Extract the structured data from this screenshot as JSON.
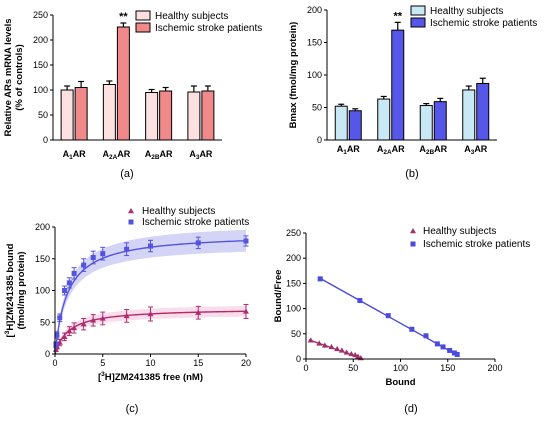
{
  "chart_data": [
    {
      "id": "a",
      "type": "bar",
      "panel_label": "(a)",
      "ylabel_line1": "Relative ARs mRNA levels",
      "ylabel_line2": "(% of controls)",
      "ylim": [
        0,
        250
      ],
      "yticks": [
        0,
        50,
        100,
        150,
        200,
        250
      ],
      "categories": [
        {
          "base": "A",
          "sub": "1",
          "tail": "AR"
        },
        {
          "base": "A",
          "sub": "2A",
          "tail": "AR"
        },
        {
          "base": "A",
          "sub": "2B",
          "tail": "AR"
        },
        {
          "base": "A",
          "sub": "3",
          "tail": "AR"
        }
      ],
      "series": [
        {
          "name": "Healthy subjects",
          "values": [
            100,
            111,
            95,
            96
          ],
          "errors": [
            8,
            7,
            6,
            12
          ],
          "color": "#fde0e0"
        },
        {
          "name": "Ischemic stroke patients",
          "values": [
            105,
            226,
            98,
            98
          ],
          "errors": [
            12,
            8,
            7,
            10
          ],
          "color": "#f08a8a"
        }
      ],
      "annotations": [
        {
          "category_index": 1,
          "series_index": 1,
          "text": "**"
        }
      ],
      "legend_position": "top-right"
    },
    {
      "id": "b",
      "type": "bar",
      "panel_label": "(b)",
      "ylabel_line1": "Bmax (fmol/mg protein)",
      "ylim": [
        0,
        200
      ],
      "yticks": [
        0,
        50,
        100,
        150,
        200
      ],
      "categories": [
        {
          "base": "A",
          "sub": "1",
          "tail": "AR"
        },
        {
          "base": "A",
          "sub": "2A",
          "tail": "AR"
        },
        {
          "base": "A",
          "sub": "2B",
          "tail": "AR"
        },
        {
          "base": "A",
          "sub": "3",
          "tail": "AR"
        }
      ],
      "series": [
        {
          "name": "Healthy subjects",
          "values": [
            52,
            63,
            53,
            77
          ],
          "errors": [
            3,
            4,
            3,
            6
          ],
          "color": "#c9e8f5"
        },
        {
          "name": "Ischemic stroke patients",
          "values": [
            45,
            169,
            59,
            87
          ],
          "errors": [
            3,
            12,
            5,
            8
          ],
          "color": "#5656e8"
        }
      ],
      "annotations": [
        {
          "category_index": 1,
          "series_index": 1,
          "text": "**"
        }
      ],
      "legend_position": "top-right"
    },
    {
      "id": "c",
      "type": "scatter",
      "panel_label": "(c)",
      "xlabel_pre": "[",
      "xlabel_sup": "3",
      "xlabel_post": "H]ZM241385 free (nM)",
      "ylabel_pre": "[",
      "ylabel_sup": "3",
      "ylabel_post": "H]ZM241385 bound",
      "ylabel_line2": "(fmol/mg protein)",
      "xlim": [
        0,
        20
      ],
      "ylim": [
        0,
        200
      ],
      "xticks": [
        0,
        5,
        10,
        15,
        20
      ],
      "yticks": [
        0,
        50,
        100,
        150,
        200
      ],
      "series": [
        {
          "name": "Healthy subjects",
          "marker": "triangle",
          "color": "#b02a6e",
          "band_color": "#f6c4dc",
          "bmax": 72,
          "kd": 1.4,
          "x": [
            0.1,
            0.2,
            0.5,
            1,
            1.5,
            2,
            3,
            4,
            5,
            7.5,
            10,
            15,
            20
          ],
          "y": [
            7,
            12,
            18,
            27,
            36,
            41,
            47,
            53,
            56,
            60,
            63,
            65,
            67
          ],
          "errors": [
            3,
            4,
            5,
            6,
            7,
            8,
            9,
            9,
            10,
            10,
            11,
            10,
            11
          ]
        },
        {
          "name": "Ischemic stroke patients",
          "marker": "square",
          "color": "#5353e0",
          "band_color": "#b8b8f2",
          "bmax": 190,
          "kd": 1.3,
          "x": [
            0.1,
            0.2,
            0.5,
            1,
            1.5,
            2,
            3,
            4,
            5,
            7.5,
            10,
            15,
            20
          ],
          "y": [
            15,
            30,
            57,
            100,
            112,
            127,
            140,
            152,
            158,
            165,
            170,
            175,
            178
          ],
          "errors": [
            4,
            5,
            6,
            7,
            8,
            9,
            10,
            10,
            10,
            10,
            9,
            9,
            8
          ]
        }
      ],
      "legend_position": "top-right"
    },
    {
      "id": "d",
      "type": "scatter",
      "panel_label": "(d)",
      "xlabel": "Bound",
      "ylabel": "Bound/Free",
      "xlim": [
        0,
        200
      ],
      "ylim": [
        0,
        250
      ],
      "xticks": [
        0,
        50,
        100,
        150,
        200
      ],
      "yticks": [
        0,
        50,
        100,
        150,
        200,
        250
      ],
      "series": [
        {
          "name": "Healthy subjects",
          "marker": "triangle",
          "color": "#a0306a",
          "x": [
            5,
            14,
            20,
            27,
            33,
            38,
            43,
            48,
            52,
            55,
            58
          ],
          "y": [
            37,
            31,
            27,
            24,
            20,
            17,
            13,
            10,
            8,
            5,
            2
          ],
          "line": [
            [
              3,
              38
            ],
            [
              58,
              2
            ]
          ]
        },
        {
          "name": "Ischemic stroke patients",
          "marker": "square",
          "color": "#4a4adc",
          "x": [
            15,
            57,
            87,
            112,
            127,
            139,
            145,
            152,
            157,
            160
          ],
          "y": [
            159,
            116,
            86,
            59,
            46,
            30,
            24,
            17,
            12,
            9
          ],
          "line": [
            [
              15,
              160
            ],
            [
              160,
              8
            ]
          ]
        }
      ],
      "legend_position": "top-right"
    }
  ]
}
